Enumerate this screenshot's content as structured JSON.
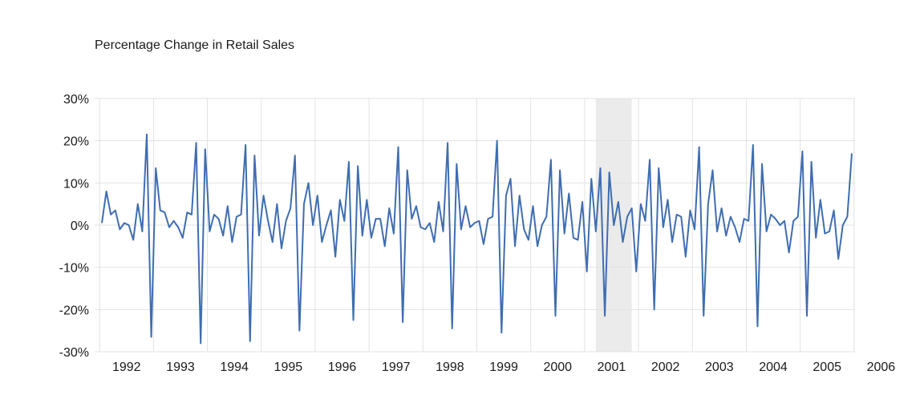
{
  "chart_data": {
    "type": "line",
    "title": "Percentage Change in Retail Sales",
    "xlabel": "",
    "ylabel": "",
    "ylim": [
      -30,
      30
    ],
    "yticks": [
      30,
      20,
      10,
      0,
      -10,
      -20,
      -30
    ],
    "ytick_labels": [
      "30%",
      "20%",
      "10%",
      "0%",
      "-10%",
      "-20%",
      "-30%"
    ],
    "x_start": "1992-01",
    "x_end": "2006-12",
    "xtick_labels": [
      "1992",
      "1993",
      "1994",
      "1995",
      "1996",
      "1997",
      "1998",
      "1999",
      "2000",
      "2001",
      "2002",
      "2003",
      "2004",
      "2005",
      "2006"
    ],
    "vertical_grid": true,
    "horizontal_grid": true,
    "shaded_period": {
      "start": "2001-03",
      "end": "2001-11",
      "color": "#ebebeb"
    },
    "line_color": "#3f6db0",
    "series": [
      {
        "values": [
          0.5,
          8,
          2.5,
          3.5,
          -1,
          0.5,
          0,
          -3.5,
          5,
          -1.5,
          21.5,
          -26.5,
          13.5,
          3.5,
          3,
          -0.5,
          1,
          -0.5,
          -3,
          3,
          2.5,
          19.5,
          -28,
          18,
          -1.5,
          2.5,
          1.5,
          -2.5,
          4.5,
          -4,
          2,
          2.5,
          19,
          -27.5,
          16.5,
          -2.5,
          7,
          1,
          -4,
          5,
          -5.5,
          1,
          4,
          16.5,
          -25,
          5,
          10,
          0,
          7,
          -4,
          0,
          3.5,
          -7.5,
          6,
          1,
          15,
          -22.5,
          14,
          -2.5,
          6,
          -3,
          1.5,
          1.5,
          -5,
          4,
          -2,
          18.5,
          -23,
          13,
          1.5,
          4.5,
          -0.5,
          -1,
          0.5,
          -4,
          5.5,
          -1.5,
          19.5,
          -24.5,
          14.5,
          -1,
          4.5,
          -0.5,
          0.5,
          1,
          -4.5,
          1.5,
          2,
          20,
          -25.5,
          7,
          11,
          -5,
          7,
          -1,
          -3.5,
          4.5,
          -5,
          0,
          2,
          15.5,
          -21.5,
          13,
          -2,
          7.5,
          -3,
          -3.5,
          5.5,
          -11,
          11,
          -1.5,
          13.5,
          -21.5,
          12.5,
          0,
          5.5,
          -4,
          2,
          4,
          -11,
          5,
          1,
          15.5,
          -20,
          13.5,
          -0.5,
          6,
          -4,
          2.5,
          2,
          -7.5,
          3.5,
          -1,
          18.5,
          -21.5,
          5,
          13,
          -1.5,
          4,
          -2.5,
          2,
          -0.5,
          -4,
          1.5,
          1,
          19,
          -24,
          14.5,
          -1.5,
          2.5,
          1.5,
          0,
          1,
          -6.5,
          1,
          2,
          17.5,
          -21.5,
          15,
          -3,
          6,
          -2,
          -1.5,
          3.5,
          -8,
          0,
          2,
          17
        ]
      }
    ]
  }
}
